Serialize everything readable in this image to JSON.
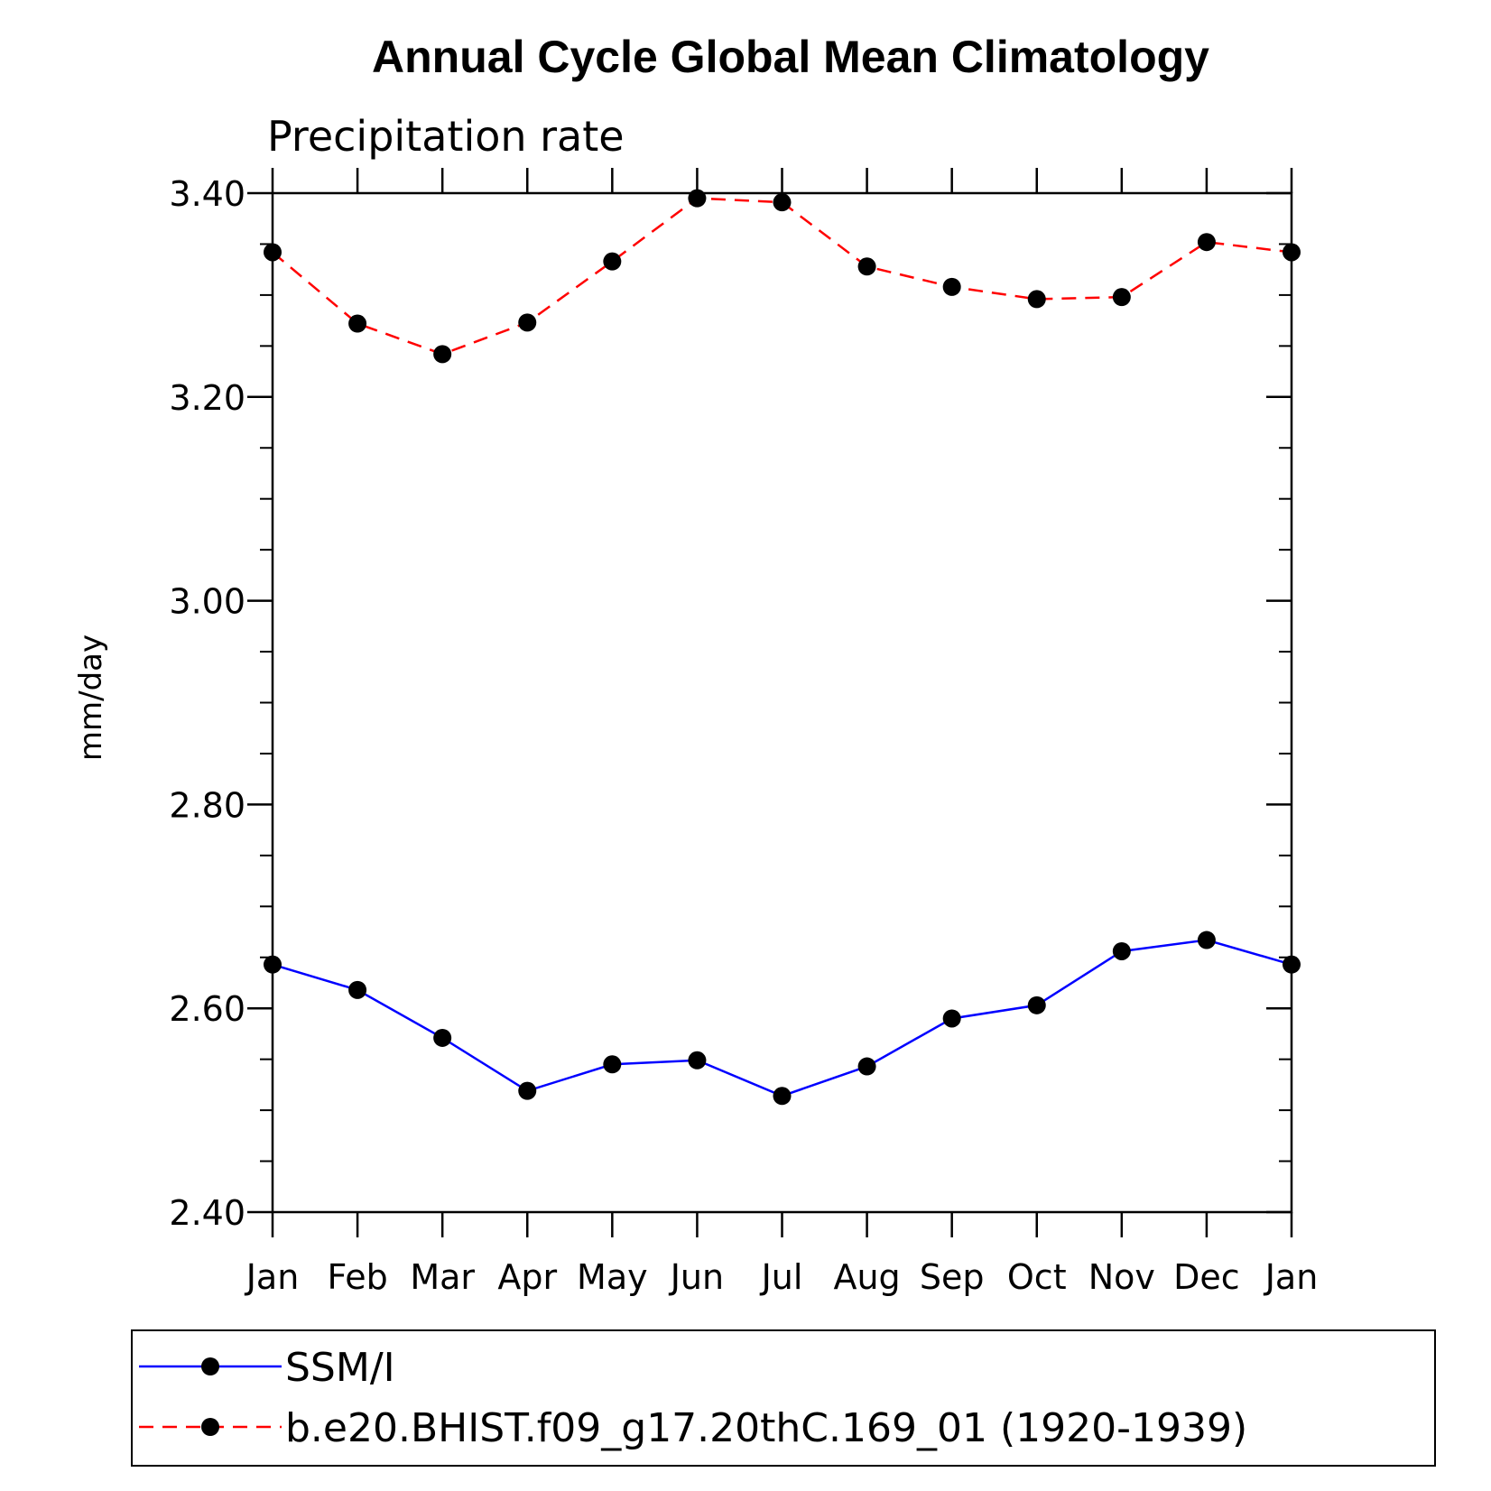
{
  "chart_data": {
    "type": "line",
    "title": "Annual Cycle Global Mean Climatology",
    "subtitle": "Precipitation rate",
    "xlabel": "",
    "ylabel": "mm/day",
    "categories": [
      "Jan",
      "Feb",
      "Mar",
      "Apr",
      "May",
      "Jun",
      "Jul",
      "Aug",
      "Sep",
      "Oct",
      "Nov",
      "Dec",
      "Jan"
    ],
    "ylim": [
      2.4,
      3.4
    ],
    "yticks": [
      2.4,
      2.6,
      2.8,
      3.0,
      3.2,
      3.4
    ],
    "ytick_labels": [
      "2.40",
      "2.60",
      "2.80",
      "3.00",
      "3.20",
      "3.40"
    ],
    "y_minor_step": 0.05,
    "legend_position": "bottom",
    "series": [
      {
        "name": "SSM/I",
        "color": "#0000ff",
        "line_style": "solid",
        "marker": "filled-circle",
        "marker_color": "#000000",
        "values": [
          2.643,
          2.618,
          2.571,
          2.519,
          2.545,
          2.549,
          2.514,
          2.543,
          2.59,
          2.603,
          2.656,
          2.667,
          2.643
        ]
      },
      {
        "name": "b.e20.BHIST.f09_g17.20thC.169_01 (1920-1939)",
        "color": "#ff0000",
        "line_style": "dashed",
        "marker": "filled-circle",
        "marker_color": "#000000",
        "values": [
          3.342,
          3.272,
          3.242,
          3.273,
          3.333,
          3.395,
          3.391,
          3.328,
          3.308,
          3.296,
          3.298,
          3.352,
          3.342
        ]
      }
    ]
  }
}
